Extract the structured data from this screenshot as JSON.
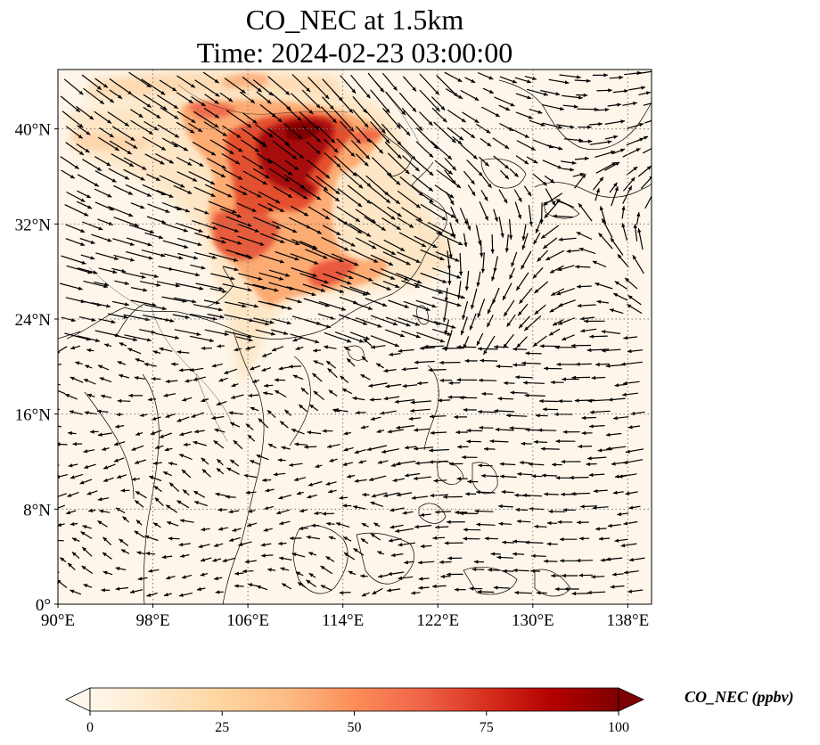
{
  "title": {
    "line1": "CO_NEC at 1.5km",
    "line2": "Time: 2024-02-23 03:00:00"
  },
  "map": {
    "lon_range": [
      90,
      140
    ],
    "lat_range": [
      0,
      45
    ],
    "projection": "PlateCarree",
    "gridlines": "dotted",
    "coastlines": true,
    "vectors": "wind arrows (quiver)",
    "lon_ticks": [
      {
        "value": 90,
        "label": "90°E"
      },
      {
        "value": 98,
        "label": "98°E"
      },
      {
        "value": 106,
        "label": "106°E"
      },
      {
        "value": 114,
        "label": "114°E"
      },
      {
        "value": 122,
        "label": "122°E"
      },
      {
        "value": 130,
        "label": "130°E"
      },
      {
        "value": 138,
        "label": "138°E"
      }
    ],
    "lat_ticks": [
      {
        "value": 0,
        "label": "0°"
      },
      {
        "value": 8,
        "label": "8°N"
      },
      {
        "value": 16,
        "label": "16°N"
      },
      {
        "value": 24,
        "label": "24°N"
      },
      {
        "value": 32,
        "label": "32°N"
      },
      {
        "value": 40,
        "label": "40°N"
      }
    ]
  },
  "colorbar": {
    "label": "CO_NEC (ppbv)",
    "min": 0,
    "max": 100,
    "extend": "both",
    "colormap": "OrRd",
    "ticks": [
      {
        "value": 0,
        "label": "0"
      },
      {
        "value": 25,
        "label": "25"
      },
      {
        "value": 50,
        "label": "50"
      },
      {
        "value": 75,
        "label": "75"
      },
      {
        "value": 100,
        "label": "100"
      }
    ],
    "colors": [
      "#fff7ec",
      "#fee8c8",
      "#fdd49e",
      "#fdbb84",
      "#fc8d59",
      "#ef6548",
      "#d7301f",
      "#b30000",
      "#7f0000"
    ]
  }
}
